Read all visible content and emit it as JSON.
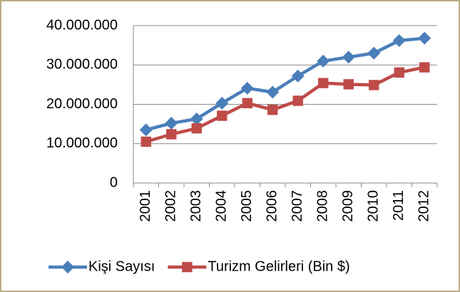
{
  "chart_data": {
    "type": "line",
    "categories": [
      "2001",
      "2002",
      "2003",
      "2004",
      "2005",
      "2006",
      "2007",
      "2008",
      "2009",
      "2010",
      "2011",
      "2012"
    ],
    "series": [
      {
        "name": "Kişi Sayısı",
        "color": "#4a7ebb",
        "marker": "diamond",
        "values": [
          13500000,
          15200000,
          16300000,
          20300000,
          24100000,
          23100000,
          27200000,
          31000000,
          32000000,
          33000000,
          36200000,
          36800000
        ]
      },
      {
        "name": "Turizm Gelirleri (Bin $)",
        "color": "#be4b48",
        "marker": "square",
        "values": [
          10500000,
          12400000,
          13900000,
          17100000,
          20300000,
          18600000,
          20900000,
          25400000,
          25100000,
          24900000,
          28100000,
          29400000
        ]
      }
    ],
    "ylim": [
      0,
      40000000
    ],
    "yticks": [
      0,
      {
        "value": 10000000,
        "label": "10.000.000"
      },
      {
        "value": 20000000,
        "label": "20.000.000"
      },
      {
        "value": 30000000,
        "label": "30.000.000"
      },
      {
        "value": 40000000,
        "label": "40.000.000"
      }
    ],
    "grid": true,
    "legend": "bottom"
  }
}
